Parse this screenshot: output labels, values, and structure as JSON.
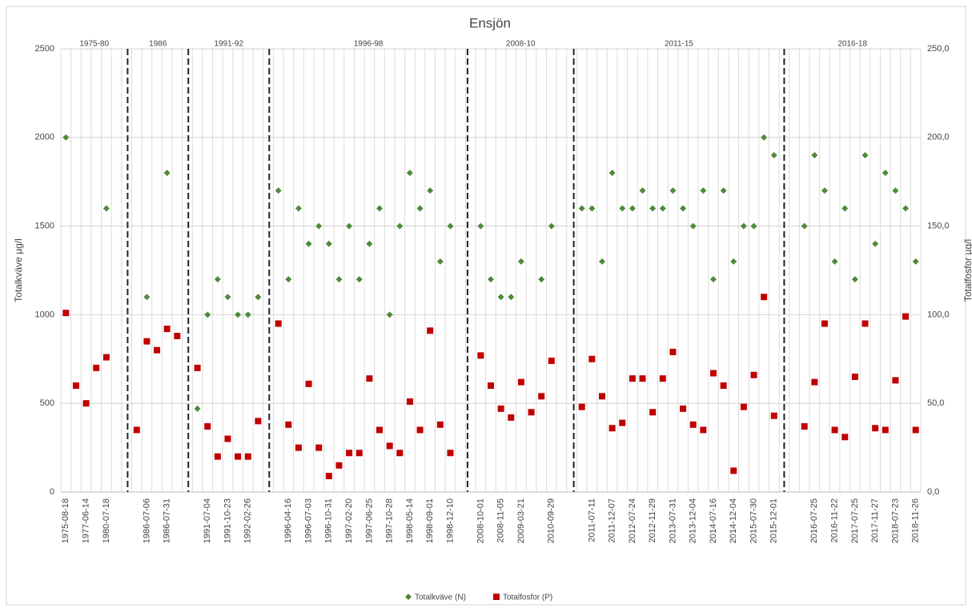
{
  "chart_data": {
    "type": "scatter",
    "title": "Ensjön",
    "ylabel": "Totalkväve µg/l",
    "y2label": "Totalfosfor µg/l",
    "periods": [
      "1975-80",
      "1986",
      "1991-92",
      "1996-98",
      "2008-10",
      "2011-15",
      "2016-18"
    ],
    "categories": [
      "1975-08-18",
      null,
      "1977-06-14",
      null,
      "1980-07-18",
      null,
      null,
      null,
      "1986-07-06",
      null,
      "1986-07-31",
      null,
      null,
      null,
      "1991-07-04",
      null,
      "1991-10-23",
      null,
      "1992-02-26",
      null,
      null,
      null,
      "1996-04-16",
      null,
      "1996-07-03",
      null,
      "1996-10-31",
      null,
      "1997-02-20",
      null,
      "1997-06-25",
      null,
      "1997-10-28",
      null,
      "1998-05-14",
      null,
      "1998-09-01",
      null,
      "1998-12-10",
      null,
      null,
      "2008-10-01",
      null,
      "2008-11-05",
      null,
      "2009-03-21",
      null,
      null,
      "2010-09-29",
      null,
      null,
      null,
      "2011-07-11",
      null,
      "2011-12-07",
      null,
      "2012-07-24",
      null,
      "2012-11-29",
      null,
      "2013-07-31",
      null,
      "2013-12-04",
      null,
      "2014-07-16",
      null,
      "2014-12-04",
      null,
      "2015-07-30",
      null,
      "2015-12-01",
      null,
      null,
      null,
      "2016-07-25",
      null,
      "2016-11-22",
      null,
      "2017-07-25",
      null,
      "2017-11-27",
      null,
      "2018-07-23",
      null,
      "2018-11-26"
    ],
    "series": [
      {
        "name": "Totalkväve (N)",
        "color": "#4e8a3a",
        "marker": "diamond",
        "values": [
          2000,
          null,
          null,
          null,
          1600,
          null,
          null,
          null,
          1100,
          null,
          1800,
          null,
          null,
          470,
          1000,
          1200,
          1100,
          1000,
          1000,
          1100,
          null,
          1700,
          1200,
          1600,
          1400,
          1500,
          1400,
          1200,
          1500,
          1200,
          1400,
          1600,
          1000,
          1500,
          1800,
          1600,
          1700,
          1300,
          1500,
          null,
          null,
          1500,
          1200,
          1100,
          1100,
          1300,
          null,
          1200,
          1500,
          null,
          null,
          1600,
          1600,
          1300,
          1800,
          1600,
          1600,
          1700,
          1600,
          1600,
          1700,
          1600,
          1500,
          1700,
          1200,
          1700,
          1300,
          1500,
          1500,
          2000,
          1900,
          null,
          null,
          1500,
          1900,
          1700,
          1300,
          1600,
          1200,
          1900,
          1400,
          1800,
          1700,
          1600,
          1300
        ]
      },
      {
        "name": "Totalfosfor (P)",
        "color": "#c00000",
        "marker": "square",
        "axis": "y2",
        "values": [
          101,
          60,
          50,
          70,
          76,
          null,
          null,
          35,
          85,
          80,
          92,
          88,
          null,
          70,
          37,
          20,
          30,
          20,
          20,
          40,
          null,
          95,
          38,
          25,
          61,
          25,
          9,
          15,
          22,
          22,
          64,
          35,
          26,
          22,
          51,
          35,
          91,
          38,
          22,
          null,
          null,
          77,
          60,
          47,
          42,
          62,
          45,
          54,
          74,
          null,
          null,
          48,
          75,
          54,
          36,
          39,
          64,
          64,
          45,
          64,
          79,
          47,
          38,
          35,
          67,
          60,
          12,
          48,
          66,
          110,
          43,
          null,
          null,
          37,
          62,
          95,
          35,
          31,
          65,
          95,
          36,
          35,
          63,
          99,
          35
        ]
      }
    ],
    "ylim": [
      0,
      2500
    ],
    "yticks": [
      0,
      500,
      1000,
      1500,
      2000,
      2500
    ],
    "y2lim": [
      0,
      250
    ],
    "y2ticks": [
      {
        "value": 0,
        "label": "0,0"
      },
      {
        "value": 50,
        "label": "50,0"
      },
      {
        "value": 100,
        "label": "100,0"
      },
      {
        "value": 150,
        "label": "150,0"
      },
      {
        "value": 200,
        "label": "200,0"
      },
      {
        "value": 250,
        "label": "250,0"
      }
    ],
    "grid": true,
    "legend": "bottom"
  }
}
